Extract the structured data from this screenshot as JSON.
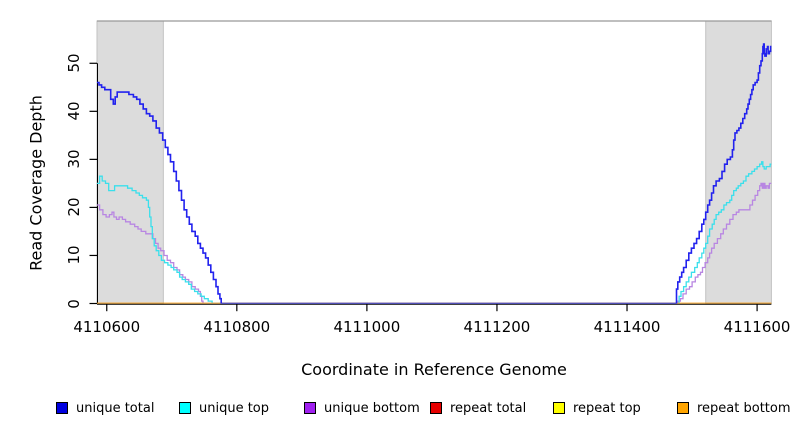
{
  "chart_data": {
    "type": "line",
    "title": "",
    "xlabel": "Coordinate in Reference Genome",
    "ylabel": "Read Coverage Depth",
    "xlim": [
      4110585,
      4111622
    ],
    "ylim": [
      0,
      58.8
    ],
    "x_ticks": [
      "4110600",
      "4110800",
      "4111000",
      "4111200",
      "4111400",
      "4111600"
    ],
    "x_tick_values": [
      4110600,
      4110800,
      4111000,
      4111200,
      4111400,
      4111600
    ],
    "y_ticks": [
      "0",
      "10",
      "20",
      "30",
      "40",
      "50"
    ],
    "y_tick_values": [
      0,
      10,
      20,
      30,
      40,
      50
    ],
    "grid": false,
    "legend_position": "bottom",
    "axis_color": "#000000",
    "top_rule_color": "#999999",
    "shaded_regions": [
      {
        "x_start": 4110585,
        "x_end": 4110687,
        "color": "#dcdcdc",
        "border_color": "#c2c2c2"
      },
      {
        "x_start": 4111521,
        "x_end": 4111622,
        "color": "#dcdcdc",
        "border_color": "#c2c2c2"
      }
    ],
    "draw_order": [
      "repeat total",
      "repeat top",
      "unique bottom",
      "unique top",
      "repeat bottom",
      "unique total"
    ],
    "series": [
      {
        "name": "unique total",
        "color": "#0000e0",
        "line_color": "#2222ee",
        "line_width": 1.6,
        "points": [
          [
            4110585,
            46
          ],
          [
            4110588,
            45.5
          ],
          [
            4110592,
            45
          ],
          [
            4110597,
            44.5
          ],
          [
            4110603,
            44.5
          ],
          [
            4110606,
            42.5
          ],
          [
            4110610,
            41.5
          ],
          [
            4110613,
            43
          ],
          [
            4110616,
            44
          ],
          [
            4110629,
            44
          ],
          [
            4110634,
            43.5
          ],
          [
            4110641,
            43
          ],
          [
            4110646,
            42.5
          ],
          [
            4110651,
            41.5
          ],
          [
            4110656,
            40.5
          ],
          [
            4110661,
            39.5
          ],
          [
            4110666,
            39
          ],
          [
            4110671,
            38
          ],
          [
            4110676,
            36.5
          ],
          [
            4110681,
            35.5
          ],
          [
            4110686,
            34
          ],
          [
            4110690,
            32.5
          ],
          [
            4110694,
            31
          ],
          [
            4110698,
            29.5
          ],
          [
            4110703,
            27.5
          ],
          [
            4110707,
            25.5
          ],
          [
            4110711,
            23.5
          ],
          [
            4110715,
            21.5
          ],
          [
            4110719,
            19.5
          ],
          [
            4110723,
            18
          ],
          [
            4110727,
            16.5
          ],
          [
            4110731,
            15
          ],
          [
            4110736,
            14
          ],
          [
            4110740,
            12.5
          ],
          [
            4110744,
            11.5
          ],
          [
            4110748,
            10.5
          ],
          [
            4110752,
            9.5
          ],
          [
            4110756,
            8
          ],
          [
            4110760,
            6.5
          ],
          [
            4110764,
            5
          ],
          [
            4110768,
            3.5
          ],
          [
            4110771,
            2
          ],
          [
            4110774,
            1
          ],
          [
            4110776,
            0
          ],
          [
            4111474,
            0
          ],
          [
            4111476,
            3
          ],
          [
            4111478,
            4.5
          ],
          [
            4111481,
            5.5
          ],
          [
            4111484,
            6.5
          ],
          [
            4111487,
            7.5
          ],
          [
            4111491,
            9
          ],
          [
            4111495,
            10.5
          ],
          [
            4111499,
            11.5
          ],
          [
            4111503,
            12.5
          ],
          [
            4111507,
            13.5
          ],
          [
            4111511,
            15
          ],
          [
            4111515,
            16.5
          ],
          [
            4111518,
            17.5
          ],
          [
            4111521,
            19
          ],
          [
            4111524,
            20.5
          ],
          [
            4111527,
            21.5
          ],
          [
            4111530,
            23
          ],
          [
            4111533,
            24.5
          ],
          [
            4111537,
            25.5
          ],
          [
            4111542,
            26
          ],
          [
            4111546,
            27.5
          ],
          [
            4111550,
            29
          ],
          [
            4111554,
            30
          ],
          [
            4111559,
            30.5
          ],
          [
            4111562,
            32
          ],
          [
            4111564,
            34
          ],
          [
            4111566,
            35.5
          ],
          [
            4111569,
            36
          ],
          [
            4111572,
            36.5
          ],
          [
            4111575,
            37.5
          ],
          [
            4111578,
            38.5
          ],
          [
            4111581,
            39.5
          ],
          [
            4111584,
            40.5
          ],
          [
            4111586,
            41.5
          ],
          [
            4111588,
            42.5
          ],
          [
            4111590,
            43.5
          ],
          [
            4111592,
            44.5
          ],
          [
            4111594,
            45.5
          ],
          [
            4111597,
            46
          ],
          [
            4111600,
            46.5
          ],
          [
            4111602,
            48
          ],
          [
            4111604,
            49.5
          ],
          [
            4111606,
            50.5
          ],
          [
            4111608,
            52
          ],
          [
            4111609,
            53.5
          ],
          [
            4111610,
            54
          ],
          [
            4111611,
            52
          ],
          [
            4111612,
            51.5
          ],
          [
            4111614,
            53
          ],
          [
            4111616,
            53.5
          ],
          [
            4111617,
            52
          ],
          [
            4111619,
            52.5
          ],
          [
            4111621,
            53.5
          ],
          [
            4111622,
            53
          ]
        ]
      },
      {
        "name": "unique top",
        "color": "#00ffff",
        "line_color": "#3adfeb",
        "line_width": 1.3,
        "points": [
          [
            4110585,
            25
          ],
          [
            4110589,
            26.5
          ],
          [
            4110593,
            25.5
          ],
          [
            4110598,
            25
          ],
          [
            4110603,
            23.5
          ],
          [
            4110609,
            23.5
          ],
          [
            4110612,
            24.5
          ],
          [
            4110627,
            24.5
          ],
          [
            4110632,
            24
          ],
          [
            4110639,
            23.5
          ],
          [
            4110645,
            23
          ],
          [
            4110650,
            22.5
          ],
          [
            4110655,
            22
          ],
          [
            4110661,
            21.5
          ],
          [
            4110664,
            20
          ],
          [
            4110666,
            18
          ],
          [
            4110668,
            16
          ],
          [
            4110670,
            13.5
          ],
          [
            4110673,
            12
          ],
          [
            4110676,
            11
          ],
          [
            4110680,
            10
          ],
          [
            4110684,
            9
          ],
          [
            4110689,
            8.5
          ],
          [
            4110694,
            8
          ],
          [
            4110699,
            7.5
          ],
          [
            4110703,
            7
          ],
          [
            4110708,
            6.5
          ],
          [
            4110712,
            5.5
          ],
          [
            4110716,
            5
          ],
          [
            4110721,
            4.5
          ],
          [
            4110726,
            4
          ],
          [
            4110730,
            3
          ],
          [
            4110735,
            2.5
          ],
          [
            4110740,
            2
          ],
          [
            4110745,
            1.5
          ],
          [
            4110750,
            1
          ],
          [
            4110756,
            0.5
          ],
          [
            4110762,
            0
          ],
          [
            4111478,
            0
          ],
          [
            4111480,
            1.5
          ],
          [
            4111483,
            2.5
          ],
          [
            4111487,
            3.5
          ],
          [
            4111491,
            4.5
          ],
          [
            4111495,
            5.5
          ],
          [
            4111499,
            6.5
          ],
          [
            4111504,
            7.5
          ],
          [
            4111508,
            8.5
          ],
          [
            4111511,
            9.5
          ],
          [
            4111515,
            10.5
          ],
          [
            4111518,
            11.5
          ],
          [
            4111521,
            12.5
          ],
          [
            4111524,
            14
          ],
          [
            4111527,
            15.5
          ],
          [
            4111531,
            16.5
          ],
          [
            4111534,
            17.5
          ],
          [
            4111537,
            18.5
          ],
          [
            4111541,
            19
          ],
          [
            4111545,
            19.5
          ],
          [
            4111549,
            20.5
          ],
          [
            4111553,
            21
          ],
          [
            4111558,
            21.5
          ],
          [
            4111561,
            22.5
          ],
          [
            4111564,
            23.5
          ],
          [
            4111568,
            24
          ],
          [
            4111571,
            24.5
          ],
          [
            4111575,
            25
          ],
          [
            4111579,
            25.5
          ],
          [
            4111583,
            26.5
          ],
          [
            4111587,
            27
          ],
          [
            4111592,
            27.5
          ],
          [
            4111596,
            28
          ],
          [
            4111600,
            28.5
          ],
          [
            4111604,
            29
          ],
          [
            4111607,
            29.5
          ],
          [
            4111609,
            28.5
          ],
          [
            4111611,
            28
          ],
          [
            4111614,
            28.5
          ],
          [
            4111618,
            28.5
          ],
          [
            4111620,
            29
          ],
          [
            4111622,
            29
          ]
        ]
      },
      {
        "name": "unique bottom",
        "color": "#a020f0",
        "line_color": "#b886e2",
        "line_width": 1.3,
        "points": [
          [
            4110585,
            20.5
          ],
          [
            4110589,
            19.5
          ],
          [
            4110594,
            18.5
          ],
          [
            4110599,
            18
          ],
          [
            4110604,
            18.5
          ],
          [
            4110608,
            19
          ],
          [
            4110611,
            18
          ],
          [
            4110615,
            17.5
          ],
          [
            4110619,
            18
          ],
          [
            4110624,
            17.5
          ],
          [
            4110629,
            17
          ],
          [
            4110636,
            16.5
          ],
          [
            4110643,
            16
          ],
          [
            4110648,
            15.5
          ],
          [
            4110653,
            15
          ],
          [
            4110660,
            14.5
          ],
          [
            4110667,
            14.5
          ],
          [
            4110671,
            13.5
          ],
          [
            4110675,
            12.5
          ],
          [
            4110679,
            11.5
          ],
          [
            4110683,
            11
          ],
          [
            4110688,
            10
          ],
          [
            4110693,
            9
          ],
          [
            4110698,
            8.5
          ],
          [
            4110703,
            7.5
          ],
          [
            4110708,
            7
          ],
          [
            4110712,
            6
          ],
          [
            4110717,
            5.5
          ],
          [
            4110721,
            5
          ],
          [
            4110726,
            4.5
          ],
          [
            4110731,
            3.5
          ],
          [
            4110736,
            3
          ],
          [
            4110741,
            2.5
          ],
          [
            4110744,
            1.5
          ],
          [
            4110746,
            0.5
          ],
          [
            4110748,
            0
          ],
          [
            4111477,
            0
          ],
          [
            4111478,
            0.5
          ],
          [
            4111480,
            0.5
          ],
          [
            4111482,
            1
          ],
          [
            4111486,
            2
          ],
          [
            4111491,
            3
          ],
          [
            4111496,
            3.5
          ],
          [
            4111500,
            4.5
          ],
          [
            4111505,
            5.5
          ],
          [
            4111509,
            6
          ],
          [
            4111513,
            6.5
          ],
          [
            4111516,
            7.5
          ],
          [
            4111520,
            8.5
          ],
          [
            4111524,
            9.5
          ],
          [
            4111527,
            10.5
          ],
          [
            4111530,
            11.5
          ],
          [
            4111534,
            12.5
          ],
          [
            4111539,
            13.5
          ],
          [
            4111544,
            14.5
          ],
          [
            4111548,
            15.5
          ],
          [
            4111553,
            16.5
          ],
          [
            4111558,
            17.5
          ],
          [
            4111563,
            18.5
          ],
          [
            4111568,
            19
          ],
          [
            4111572,
            19.5
          ],
          [
            4111585,
            19.5
          ],
          [
            4111589,
            20.5
          ],
          [
            4111593,
            21.5
          ],
          [
            4111597,
            22.5
          ],
          [
            4111601,
            23.5
          ],
          [
            4111604,
            24.5
          ],
          [
            4111606,
            25
          ],
          [
            4111608,
            24
          ],
          [
            4111610,
            25
          ],
          [
            4111612,
            24
          ],
          [
            4111614,
            24.5
          ],
          [
            4111617,
            24
          ],
          [
            4111619,
            25
          ],
          [
            4111622,
            25
          ]
        ]
      },
      {
        "name": "repeat total",
        "color": "#e60000",
        "line_color": "#e60000",
        "line_width": 1.3,
        "points": [
          [
            4110585,
            0
          ],
          [
            4111622,
            0
          ]
        ]
      },
      {
        "name": "repeat top",
        "color": "#ffff00",
        "line_color": "#ffff00",
        "line_width": 1.3,
        "points": [
          [
            4110585,
            0
          ],
          [
            4111622,
            0
          ]
        ]
      },
      {
        "name": "repeat bottom",
        "color": "#ffa500",
        "line_color": "#ff9d0a",
        "line_width": 1.4,
        "points": [
          [
            4110585,
            0
          ],
          [
            4111622,
            0
          ]
        ]
      }
    ]
  }
}
